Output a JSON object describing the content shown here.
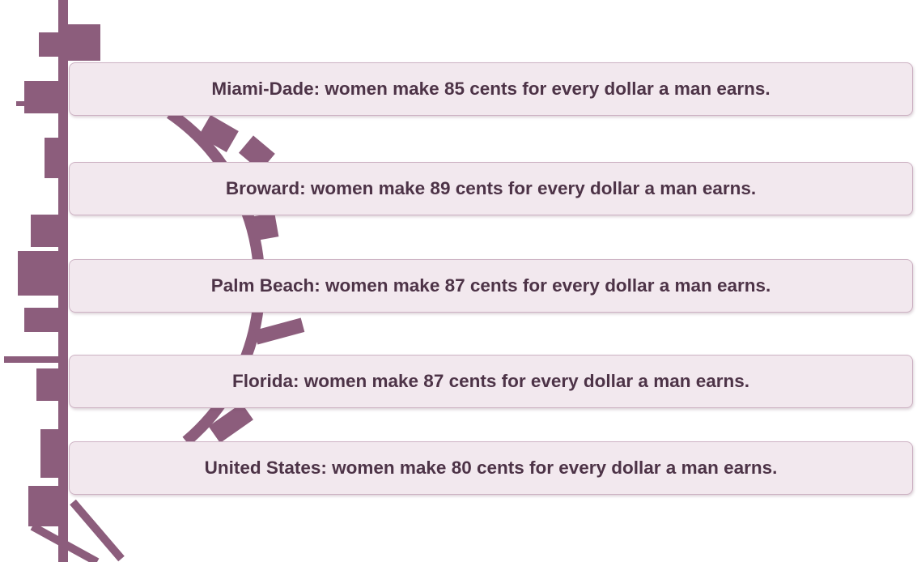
{
  "items": [
    {
      "text": "Miami-Dade: women make 85 cents for every dollar a man earns."
    },
    {
      "text": "Broward: women make 89 cents for every dollar a man earns."
    },
    {
      "text": "Palm Beach: women make 87 cents for every dollar a man earns."
    },
    {
      "text": "Florida: women make 87 cents for every dollar a man earns."
    },
    {
      "text": "United States: women make 80 cents for every dollar a man earns."
    }
  ]
}
